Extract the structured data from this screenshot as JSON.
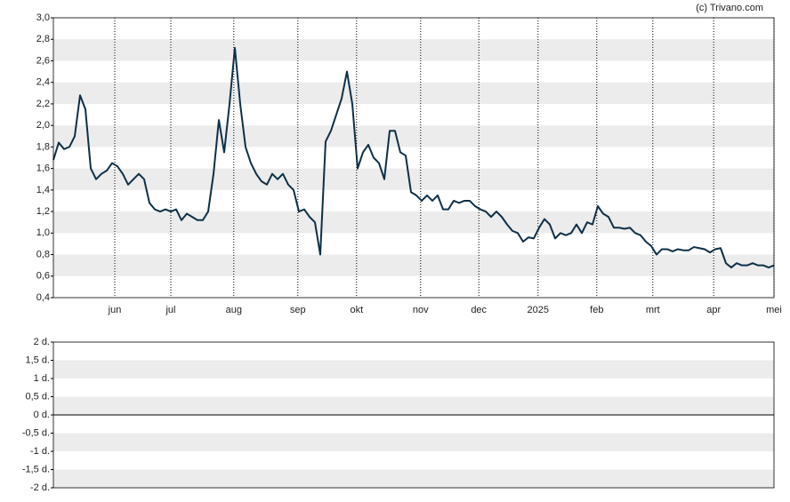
{
  "chart_data": [
    {
      "type": "line",
      "credit": "(c) Trivano.com",
      "color": "#0d3048",
      "xlim": [
        0,
        135
      ],
      "xticks": [
        {
          "value": 11.5,
          "label": "jun"
        },
        {
          "value": 22,
          "label": "jul"
        },
        {
          "value": 33.8,
          "label": "aug"
        },
        {
          "value": 45.8,
          "label": "sep"
        },
        {
          "value": 56.8,
          "label": "okt"
        },
        {
          "value": 68.8,
          "label": "nov"
        },
        {
          "value": 79.7,
          "label": "dec"
        },
        {
          "value": 90.8,
          "label": "2025"
        },
        {
          "value": 101.8,
          "label": "feb"
        },
        {
          "value": 112.3,
          "label": "mrt"
        },
        {
          "value": 123.7,
          "label": "apr"
        },
        {
          "value": 135,
          "label": "mei"
        }
      ],
      "ylim": [
        0.4,
        3.0
      ],
      "yticks": [
        {
          "value": 3.0,
          "label": "3,0"
        },
        {
          "value": 2.8,
          "label": "2,8"
        },
        {
          "value": 2.6,
          "label": "2,6"
        },
        {
          "value": 2.4,
          "label": "2,4"
        },
        {
          "value": 2.2,
          "label": "2,2"
        },
        {
          "value": 2.0,
          "label": "2,0"
        },
        {
          "value": 1.8,
          "label": "1,8"
        },
        {
          "value": 1.6,
          "label": "1,6"
        },
        {
          "value": 1.4,
          "label": "1,4"
        },
        {
          "value": 1.2,
          "label": "1,2"
        },
        {
          "value": 1.0,
          "label": "1,0"
        },
        {
          "value": 0.8,
          "label": "0,8"
        },
        {
          "value": 0.6,
          "label": "0,6"
        },
        {
          "value": 0.4,
          "label": "0,4"
        }
      ],
      "values": [
        1.68,
        1.84,
        1.78,
        1.8,
        1.9,
        2.28,
        2.15,
        1.6,
        1.5,
        1.55,
        1.58,
        1.65,
        1.62,
        1.55,
        1.45,
        1.5,
        1.55,
        1.5,
        1.28,
        1.22,
        1.2,
        1.22,
        1.2,
        1.22,
        1.12,
        1.18,
        1.15,
        1.12,
        1.12,
        1.2,
        1.55,
        2.05,
        1.75,
        2.2,
        2.72,
        2.2,
        1.8,
        1.65,
        1.55,
        1.48,
        1.45,
        1.55,
        1.5,
        1.55,
        1.45,
        1.4,
        1.2,
        1.22,
        1.15,
        1.1,
        0.8,
        1.85,
        1.95,
        2.1,
        2.25,
        2.5,
        2.2,
        1.6,
        1.75,
        1.82,
        1.7,
        1.65,
        1.5,
        1.95,
        1.95,
        1.75,
        1.72,
        1.38,
        1.35,
        1.3,
        1.35,
        1.3,
        1.35,
        1.22,
        1.22,
        1.3,
        1.28,
        1.3,
        1.3,
        1.25,
        1.22,
        1.2,
        1.15,
        1.2,
        1.15,
        1.08,
        1.02,
        1.0,
        0.92,
        0.96,
        0.95,
        1.05,
        1.13,
        1.08,
        0.95,
        1.0,
        0.98,
        1.0,
        1.08,
        1.0,
        1.1,
        1.08,
        1.25,
        1.18,
        1.15,
        1.05,
        1.05,
        1.04,
        1.05,
        1.0,
        0.98,
        0.92,
        0.88,
        0.8,
        0.85,
        0.85,
        0.83,
        0.85,
        0.84,
        0.84,
        0.87,
        0.86,
        0.85,
        0.82,
        0.85,
        0.86,
        0.72,
        0.68,
        0.72,
        0.7,
        0.7,
        0.72,
        0.7,
        0.7,
        0.68,
        0.7
      ]
    },
    {
      "type": "line",
      "ylim": [
        -2,
        2
      ],
      "yticks": [
        {
          "value": 2,
          "label": "2 d."
        },
        {
          "value": 1.5,
          "label": "1,5 d."
        },
        {
          "value": 1,
          "label": "1 d."
        },
        {
          "value": 0.5,
          "label": "0,5 d."
        },
        {
          "value": 0,
          "label": "0 d."
        },
        {
          "value": -0.5,
          "label": "-0,5 d."
        },
        {
          "value": -1,
          "label": "-1 d."
        },
        {
          "value": -1.5,
          "label": "-1,5 d."
        },
        {
          "value": -2,
          "label": "-2 d."
        }
      ]
    }
  ]
}
